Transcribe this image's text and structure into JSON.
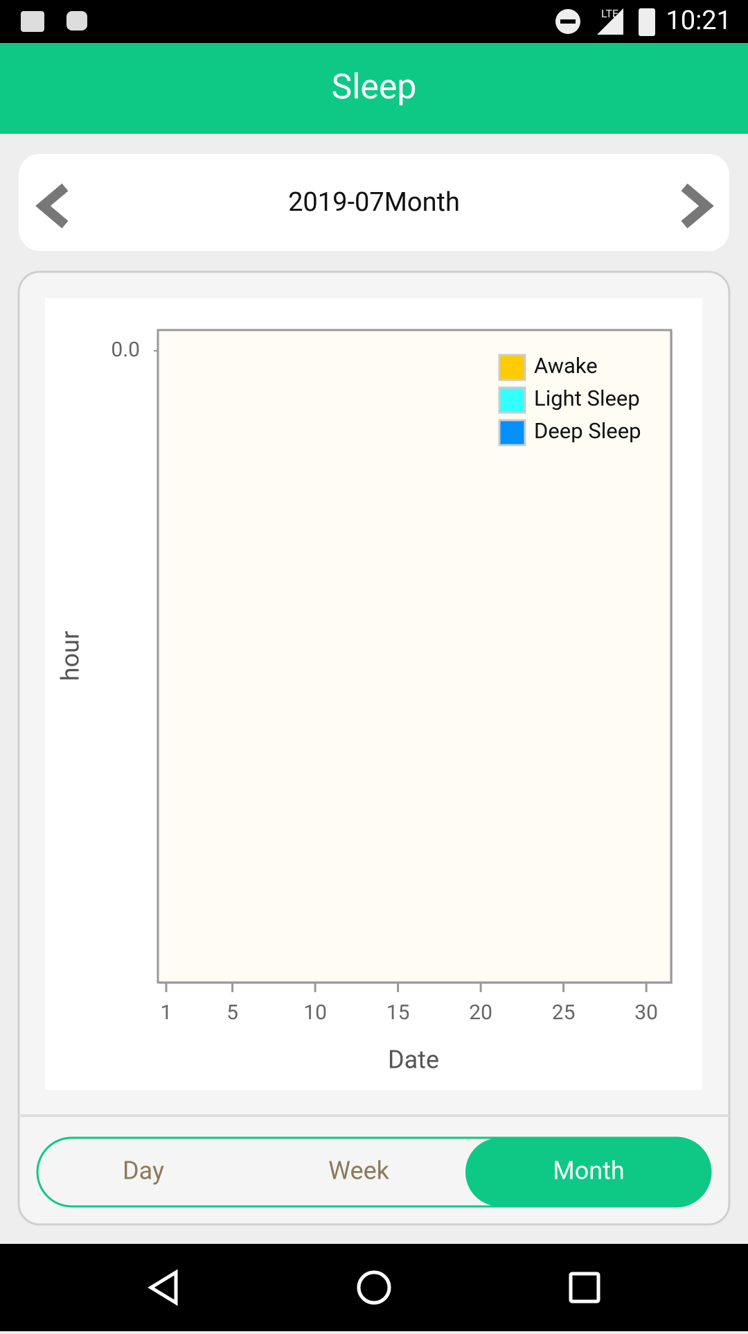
{
  "status_bar": {
    "time": "10:21",
    "network": "LTE"
  },
  "header": {
    "title": "Sleep"
  },
  "period_nav": {
    "label": "2019-07Month"
  },
  "chart_data": {
    "type": "bar",
    "xlabel": "Date",
    "ylabel": "hour",
    "xlim": [
      0.5,
      31.5
    ],
    "xticks": [
      1,
      5,
      10,
      15,
      20,
      25,
      30
    ],
    "yticks": [
      {
        "value": 0,
        "label": "0.0"
      }
    ],
    "legend": "upper right",
    "series": [
      {
        "name": "Awake",
        "color": "#ffcc00",
        "values": []
      },
      {
        "name": "Light Sleep",
        "color": "#33ffff",
        "values": []
      },
      {
        "name": "Deep Sleep",
        "color": "#0090ff",
        "values": []
      }
    ]
  },
  "tabs": {
    "items": [
      "Day",
      "Week",
      "Month"
    ],
    "selected": 2
  }
}
